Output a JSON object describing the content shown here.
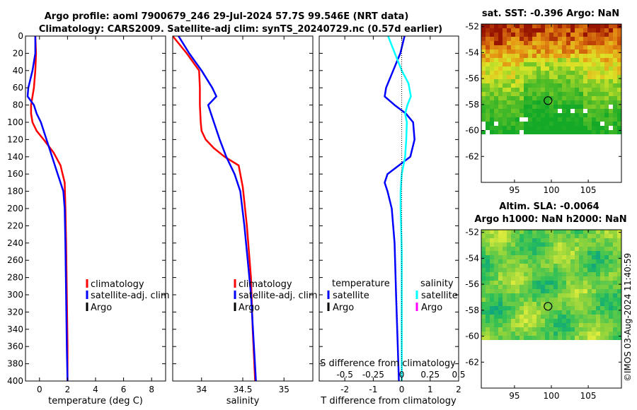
{
  "header": {
    "line1": "Argo profile: aoml 7900679_246 29-Jul-2024 57.7S 99.546E (NRT data)",
    "line2": "Climatology: CARS2009. Satellite-adj clim: synTS_20240729.nc (0.57d earlier)"
  },
  "credit": "©IMOS 03-Aug-2024 11:40:59",
  "colors": {
    "climatology": "#ff0000",
    "satellite": "#0000ff",
    "argo": "#000000",
    "salinity_satellite": "#00ffff",
    "salinity_argo": "#ff00ff"
  },
  "chart_data": [
    {
      "type": "line",
      "name": "temperature",
      "xlabel": "temperature (deg C)",
      "xlim": [
        -1,
        9
      ],
      "xticks": [
        0,
        2,
        4,
        6,
        8
      ],
      "xtick_labels": [
        "0",
        "2",
        "4",
        "6",
        "8"
      ],
      "ylim": [
        0,
        400
      ],
      "yticks": [
        0,
        20,
        40,
        60,
        80,
        100,
        120,
        140,
        160,
        180,
        200,
        220,
        240,
        260,
        280,
        300,
        320,
        340,
        360,
        380,
        400
      ],
      "ytick_labels": [
        "0",
        "20",
        "40",
        "60",
        "80",
        "100",
        "120",
        "140",
        "160",
        "180",
        "200",
        "220",
        "240",
        "260",
        "280",
        "300",
        "320",
        "340",
        "360",
        "380",
        "400"
      ],
      "legend": [
        "climatology",
        "satellite-adj. clim",
        "Argo"
      ],
      "series": [
        {
          "name": "climatology",
          "color": "#ff0000",
          "x": [
            -0.3,
            -0.25,
            -0.3,
            -0.4,
            -0.5,
            -0.6,
            -0.6,
            -0.5,
            -0.2,
            0.3,
            1.0,
            1.5,
            1.8,
            1.85,
            1.9,
            1.95,
            2.0,
            2.0
          ],
          "y": [
            0,
            20,
            40,
            60,
            70,
            80,
            90,
            100,
            110,
            120,
            135,
            150,
            170,
            200,
            240,
            300,
            360,
            400
          ]
        },
        {
          "name": "satellite-adj. clim",
          "color": "#0000ff",
          "x": [
            -0.3,
            -0.3,
            -0.5,
            -0.8,
            -0.85,
            -0.4,
            -0.2,
            0.1,
            0.5,
            0.9,
            1.3,
            1.7,
            1.8,
            1.85,
            1.9,
            1.95,
            2.0
          ],
          "y": [
            0,
            20,
            40,
            60,
            70,
            80,
            90,
            100,
            120,
            140,
            160,
            180,
            200,
            240,
            300,
            360,
            400
          ]
        }
      ]
    },
    {
      "type": "line",
      "name": "salinity",
      "xlabel": "salinity",
      "xlim": [
        33.65,
        35.35
      ],
      "xticks": [
        34,
        34.5,
        35
      ],
      "xtick_labels": [
        "34",
        "34.5",
        "35"
      ],
      "ylim": [
        0,
        400
      ],
      "legend": [
        "climatology",
        "satellite-adj. clim",
        "Argo"
      ],
      "series": [
        {
          "name": "climatology",
          "color": "#ff0000",
          "x": [
            33.65,
            33.82,
            33.97,
            33.98,
            33.98,
            33.99,
            34.0,
            34.05,
            34.15,
            34.28,
            34.45,
            34.5,
            34.55,
            34.6,
            34.62,
            34.65
          ],
          "y": [
            0,
            20,
            40,
            60,
            80,
            100,
            110,
            120,
            130,
            140,
            150,
            175,
            220,
            280,
            340,
            400
          ]
        },
        {
          "name": "satellite-adj. clim",
          "color": "#0000ff",
          "x": [
            33.72,
            33.85,
            34.0,
            34.13,
            34.18,
            34.08,
            34.15,
            34.22,
            34.3,
            34.4,
            34.47,
            34.52,
            34.56,
            34.6,
            34.63,
            34.66
          ],
          "y": [
            0,
            20,
            40,
            60,
            70,
            80,
            100,
            120,
            140,
            160,
            180,
            220,
            260,
            300,
            350,
            400
          ]
        }
      ]
    },
    {
      "type": "line",
      "name": "difference",
      "xlabel": "T difference from climatology",
      "x2label": "S difference from climatology",
      "xlim": [
        -2.9,
        2.0
      ],
      "xticks": [
        -2,
        -1,
        0,
        1,
        2
      ],
      "xtick_labels": [
        "-2",
        "-1",
        "0",
        "1",
        "2"
      ],
      "s_ticks": [
        -0.5,
        -0.25,
        0,
        0.25,
        0.5
      ],
      "s_tick_labels": [
        "-0.5",
        "-0.25",
        "0",
        "0.25",
        "0.5"
      ],
      "ylim": [
        0,
        400
      ],
      "legend_temperature": {
        "title": "temperature",
        "items": [
          "satellite",
          "Argo"
        ]
      },
      "legend_salinity": {
        "title": "salinity",
        "items": [
          "satellite",
          "Argo"
        ]
      },
      "series": [
        {
          "name": "temperature satellite",
          "color": "#0000ff",
          "x": [
            0.1,
            -0.05,
            -0.3,
            -0.55,
            -0.6,
            -0.25,
            0.15,
            0.4,
            0.45,
            0.3,
            -0.1,
            -0.5,
            -0.6,
            -0.5,
            -0.35,
            -0.25,
            -0.2,
            -0.15,
            -0.1
          ],
          "y": [
            0,
            20,
            40,
            60,
            70,
            80,
            90,
            100,
            120,
            140,
            150,
            160,
            170,
            180,
            200,
            240,
            300,
            350,
            400
          ]
        },
        {
          "name": "salinity satellite",
          "color": "#00ffff",
          "x": [
            -0.12,
            -0.06,
            0.0,
            0.06,
            0.08,
            0.05,
            0.03,
            0.045,
            0.04,
            0.03,
            0.0,
            -0.01,
            -0.01,
            0.0,
            0.0,
            0.0,
            0.0
          ],
          "y": [
            0,
            20,
            40,
            55,
            70,
            80,
            90,
            100,
            120,
            140,
            160,
            180,
            200,
            250,
            300,
            350,
            400
          ]
        }
      ]
    },
    {
      "type": "heatmap",
      "name": "sst_map",
      "title": "sat. SST: -0.396 Argo: NaN",
      "xticks": [
        95,
        100,
        105
      ],
      "xtick_labels": [
        "95",
        "100",
        "105"
      ],
      "yticks": [
        -52,
        -54,
        -56,
        -58,
        -60,
        -62
      ],
      "ytick_labels": [
        "-52",
        "-54",
        "-56",
        "-58",
        "-60",
        "-62"
      ],
      "xlim": [
        90.5,
        109.5
      ],
      "ylim": [
        -64,
        -51.8
      ],
      "data_ylim": [
        -60,
        -51.8
      ],
      "marker": {
        "lon": 99.546,
        "lat": -57.7
      }
    },
    {
      "type": "heatmap",
      "name": "sla_map",
      "title1": "Altim. SLA: -0.0064",
      "title2": "Argo h1000: NaN h2000: NaN",
      "xticks": [
        95,
        100,
        105
      ],
      "xtick_labels": [
        "95",
        "100",
        "105"
      ],
      "yticks": [
        -52,
        -54,
        -56,
        -58,
        -60,
        -62
      ],
      "ytick_labels": [
        "-52",
        "-54",
        "-56",
        "-58",
        "-60",
        "-62"
      ],
      "xlim": [
        90.5,
        109.5
      ],
      "ylim": [
        -64,
        -51.8
      ],
      "data_ylim": [
        -60,
        -51.8
      ],
      "marker": {
        "lon": 99.546,
        "lat": -57.7
      }
    }
  ]
}
